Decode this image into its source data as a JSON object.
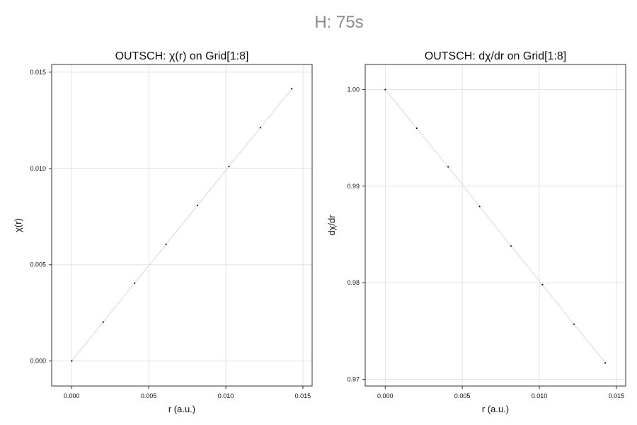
{
  "figure": {
    "suptitle": "H: 75s",
    "colors": {
      "line": "#d8d8d8",
      "marker": "#111111",
      "grid": "#e3e3e3",
      "frame": "#333333",
      "suptitle": "#8a8a8a"
    }
  },
  "chart_data": [
    {
      "type": "line",
      "title": "OUTSCH: χ(r) on Grid[1:8]",
      "xlabel": "r (a.u.)",
      "ylabel": "χ(r)",
      "xlim": [
        -0.0013,
        0.0156
      ],
      "ylim": [
        -0.0013,
        0.0154
      ],
      "xticks": [
        0,
        0.005,
        0.01,
        0.015
      ],
      "xticklabels": [
        "0.000",
        "0.005",
        "0.010",
        "0.015"
      ],
      "yticks": [
        0,
        0.005,
        0.01,
        0.015
      ],
      "yticklabels": [
        "0.000",
        "0.005",
        "0.010",
        "0.015"
      ],
      "grid": true,
      "series": [
        {
          "x": [
            0,
            0.00204,
            0.00408,
            0.00612,
            0.00816,
            0.0102,
            0.01224,
            0.01428
          ],
          "y": [
            0,
            0.00202,
            0.00404,
            0.00606,
            0.00808,
            0.0101,
            0.01212,
            0.01414
          ]
        }
      ]
    },
    {
      "type": "line",
      "title": "OUTSCH: dχ/dr on Grid[1:8]",
      "xlabel": "r (a.u.)",
      "ylabel": "dχ/dr",
      "xlim": [
        -0.0013,
        0.0156
      ],
      "ylim": [
        0.9693,
        1.0026
      ],
      "xticks": [
        0,
        0.005,
        0.01,
        0.015
      ],
      "xticklabels": [
        "0.000",
        "0.005",
        "0.010",
        "0.015"
      ],
      "yticks": [
        0.97,
        0.98,
        0.99,
        1.0
      ],
      "yticklabels": [
        "0.97",
        "0.98",
        "0.99",
        "1.00"
      ],
      "grid": true,
      "series": [
        {
          "x": [
            0,
            0.00204,
            0.00408,
            0.00612,
            0.00816,
            0.0102,
            0.01224,
            0.01428
          ],
          "y": [
            1.0,
            0.996,
            0.992,
            0.9879,
            0.9838,
            0.9798,
            0.9757,
            0.9717
          ]
        }
      ]
    }
  ]
}
